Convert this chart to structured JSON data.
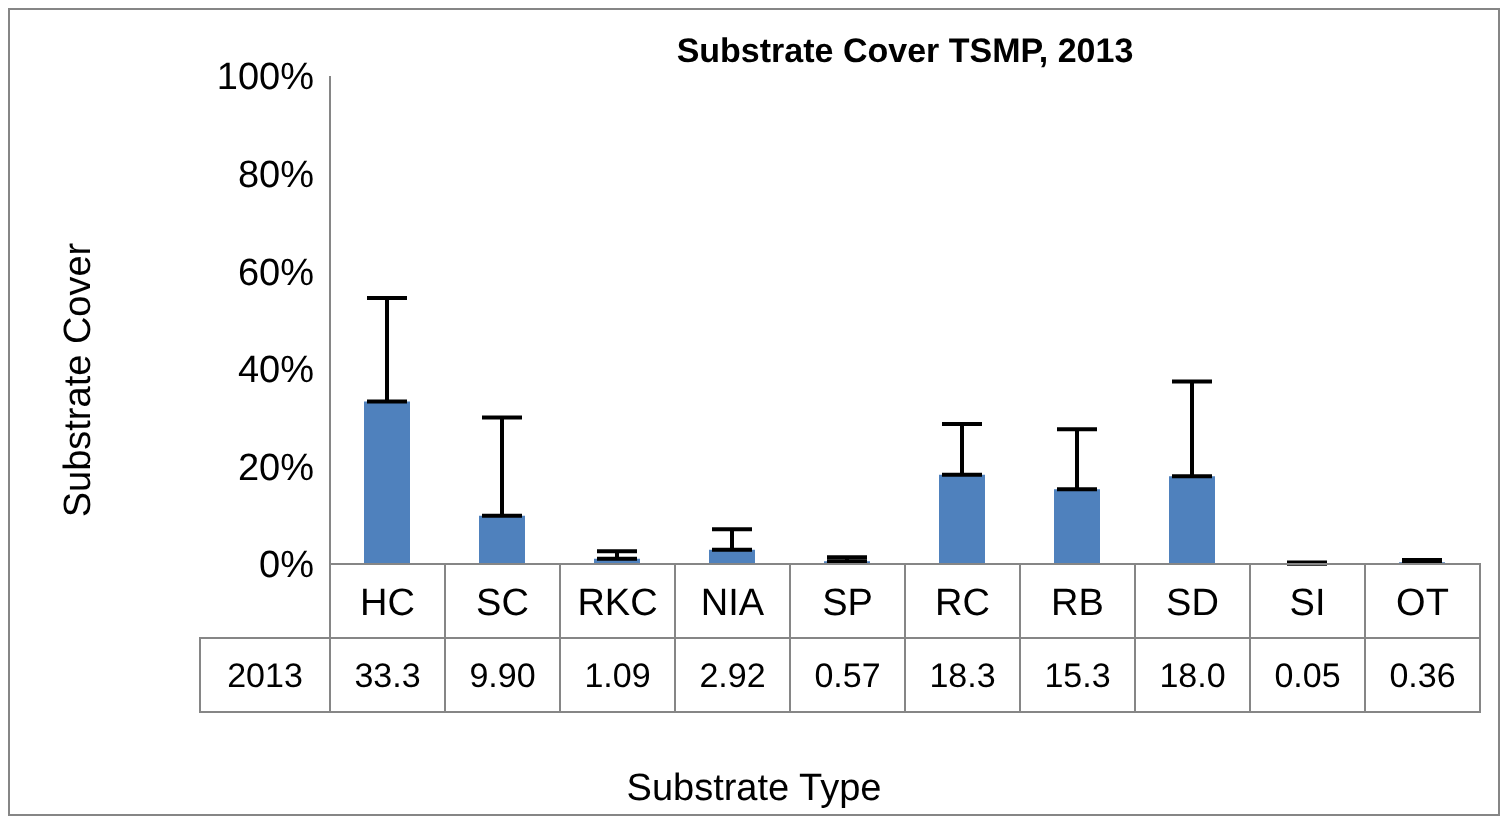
{
  "chart_data": {
    "type": "bar",
    "title": "Substrate Cover TSMP, 2013",
    "xlabel": "Substrate Type",
    "ylabel": "Substrate Cover",
    "categories": [
      "HC",
      "SC",
      "RKC",
      "NIA",
      "SP",
      "RC",
      "RB",
      "SD",
      "SI",
      "OT"
    ],
    "series": [
      {
        "name": "2013",
        "color": "#4f81bd",
        "values": [
          33.3,
          9.9,
          1.09,
          2.92,
          0.57,
          18.3,
          15.3,
          18.0,
          0.05,
          0.36
        ],
        "value_labels": [
          "33.3",
          "9.90",
          "1.09",
          "2.92",
          "0.57",
          "18.3",
          "15.3",
          "18.0",
          "0.05",
          "0.36"
        ],
        "errors": [
          [
            33.3,
            54.5
          ],
          [
            9.9,
            30
          ],
          [
            1.09,
            2.6
          ],
          [
            2.92,
            7.1
          ],
          [
            0.57,
            1.4
          ],
          [
            18.3,
            28.7
          ],
          [
            15.3,
            27.6
          ],
          [
            18.0,
            37.4
          ],
          [
            0.05,
            0.3
          ],
          [
            0.36,
            0.8
          ]
        ]
      }
    ],
    "ylim": [
      0,
      100
    ],
    "yticks": [
      {
        "value": 0,
        "label": "0%"
      },
      {
        "value": 20,
        "label": "20%"
      },
      {
        "value": 40,
        "label": "40%"
      },
      {
        "value": 60,
        "label": "60%"
      },
      {
        "value": 80,
        "label": "80%"
      },
      {
        "value": 100,
        "label": "100%"
      }
    ],
    "grid": false,
    "legend": false
  }
}
